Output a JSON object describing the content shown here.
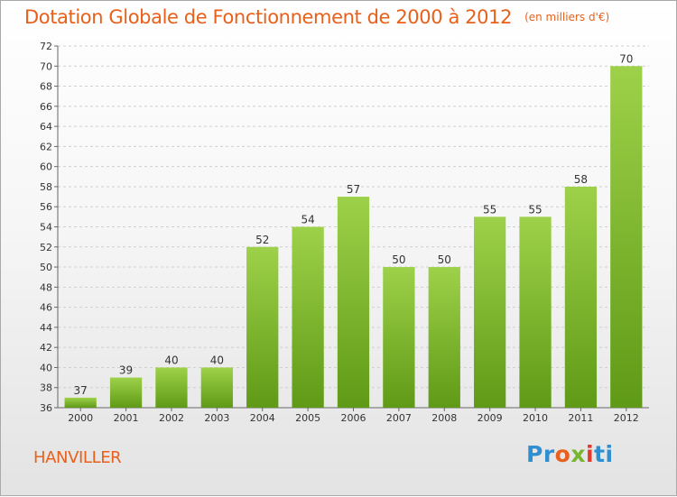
{
  "header": {
    "title": "Dotation Globale de Fonctionnement de 2000 à 2012",
    "unit": "(en milliers d'€)"
  },
  "footer": {
    "commune": "HANVILLER",
    "logo_parts": [
      "Pr",
      "o",
      "x",
      "i",
      "ti"
    ]
  },
  "chart_data": {
    "type": "bar",
    "title": "Dotation Globale de Fonctionnement de 2000 à 2012",
    "subtitle": "(en milliers d'€)",
    "categories": [
      "2000",
      "2001",
      "2002",
      "2003",
      "2004",
      "2005",
      "2006",
      "2007",
      "2008",
      "2009",
      "2010",
      "2011",
      "2012"
    ],
    "values": [
      37,
      39,
      40,
      40,
      52,
      54,
      57,
      50,
      50,
      55,
      55,
      58,
      70
    ],
    "ylim": [
      36,
      72
    ],
    "yticks": [
      36,
      38,
      40,
      42,
      44,
      46,
      48,
      50,
      52,
      54,
      56,
      58,
      60,
      62,
      64,
      66,
      68,
      70,
      72
    ],
    "grid": true,
    "bar_color": "#7fbf2e",
    "bar_color_top": "#9ed14a",
    "bar_color_bottom": "#5f9a16"
  }
}
